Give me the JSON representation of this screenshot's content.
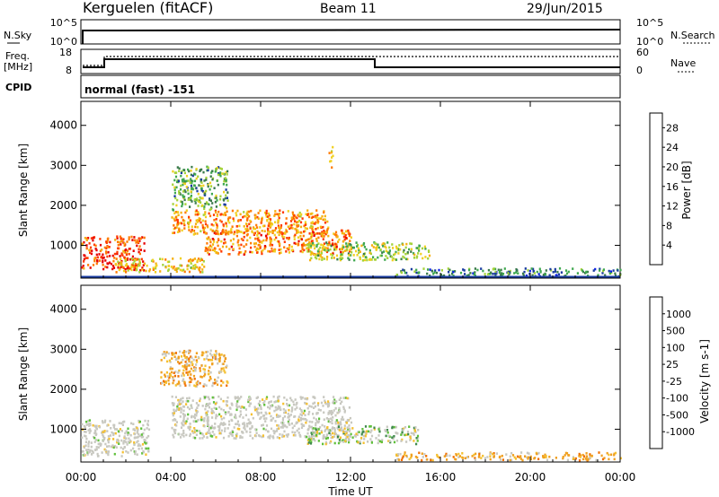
{
  "header": {
    "station": "Kerguelen (fitACF)",
    "beam": "Beam 11",
    "date": "29/Jun/2015"
  },
  "aux_panels": {
    "nsky_label": "N.Sky",
    "nsky_ticks": [
      "10^5",
      "10^0"
    ],
    "nsearch_label": "N.Search",
    "nsearch_ticks": [
      "10^5",
      "10^0"
    ],
    "freq_label": "Freq.",
    "freq_unit": "[MHz]",
    "freq_ticks": [
      "18",
      "8"
    ],
    "nave_label": "Nave",
    "nave_ticks": [
      "60",
      "0"
    ],
    "cpid_label": "CPID",
    "cpid_text": "normal (fast) -151"
  },
  "chart_data": [
    {
      "type": "heatmap",
      "name": "power",
      "xlabel": "",
      "ylabel": "Slant Range [km]",
      "x_ticks": [
        "00:00",
        "04:00",
        "08:00",
        "12:00",
        "16:00",
        "20:00",
        "00:00"
      ],
      "y_ticks": [
        "1000",
        "2000",
        "3000",
        "4000"
      ],
      "ylim": [
        180,
        4600
      ],
      "colorbar": {
        "label": "Power [dB]",
        "ticks": [
          "4",
          "8",
          "12",
          "16",
          "20",
          "24",
          "28"
        ],
        "range": [
          0,
          31
        ],
        "colors": [
          "#0a1ee6",
          "#1a3ca0",
          "#3a7a4a",
          "#3fa84f",
          "#a5d33a",
          "#f0d020",
          "#f5b010",
          "#ff7a00",
          "#ff3a00",
          "#e60000"
        ]
      },
      "echo_regions_hours_km": [
        {
          "t": [
            0.0,
            2.8
          ],
          "r": [
            400,
            1250
          ],
          "level": 0.9
        },
        {
          "t": [
            1.5,
            5.5
          ],
          "r": [
            350,
            700
          ],
          "level": 0.6
        },
        {
          "t": [
            4.0,
            11.0
          ],
          "r": [
            1300,
            1900
          ],
          "level": 0.7
        },
        {
          "t": [
            5.5,
            12.0
          ],
          "r": [
            800,
            1400
          ],
          "level": 0.75
        },
        {
          "t": [
            10.0,
            15.5
          ],
          "r": [
            650,
            1100
          ],
          "level": 0.45
        },
        {
          "t": [
            4.0,
            6.5
          ],
          "r": [
            1900,
            3000
          ],
          "level": 0.35
        },
        {
          "t": [
            11.0,
            11.2
          ],
          "r": [
            2950,
            3500
          ],
          "level": 0.6
        },
        {
          "t": [
            14.0,
            24.0
          ],
          "r": [
            250,
            450
          ],
          "level": 0.25
        }
      ]
    },
    {
      "type": "heatmap",
      "name": "velocity",
      "xlabel": "Time UT",
      "ylabel": "Slant Range [km]",
      "x_ticks": [
        "00:00",
        "04:00",
        "08:00",
        "12:00",
        "16:00",
        "20:00",
        "00:00"
      ],
      "y_ticks": [
        "1000",
        "2000",
        "3000",
        "4000"
      ],
      "ylim": [
        180,
        4600
      ],
      "colorbar": {
        "label": "Velocity [m s-1]",
        "ticks": [
          "1000",
          "500",
          "100",
          "25",
          "-25",
          "-100",
          "-500",
          "-1000"
        ],
        "colors": [
          "#1a3cc0",
          "#2a6aa0",
          "#3f8a4a",
          "#5fc03a",
          "#c8c8c0",
          "#f5c030",
          "#f0a020",
          "#f07000",
          "#e03000"
        ]
      },
      "echo_regions_hours_km": [
        {
          "t": [
            0.0,
            3.0
          ],
          "r": [
            350,
            1250
          ],
          "kind": "ground"
        },
        {
          "t": [
            4.0,
            12.0
          ],
          "r": [
            800,
            1850
          ],
          "kind": "ground"
        },
        {
          "t": [
            10.0,
            15.0
          ],
          "r": [
            650,
            1100
          ],
          "kind": "mixed"
        },
        {
          "t": [
            3.5,
            6.5
          ],
          "r": [
            2100,
            3000
          ],
          "kind": "negative"
        },
        {
          "t": [
            14.0,
            24.0
          ],
          "r": [
            250,
            450
          ],
          "kind": "negative"
        }
      ]
    }
  ]
}
